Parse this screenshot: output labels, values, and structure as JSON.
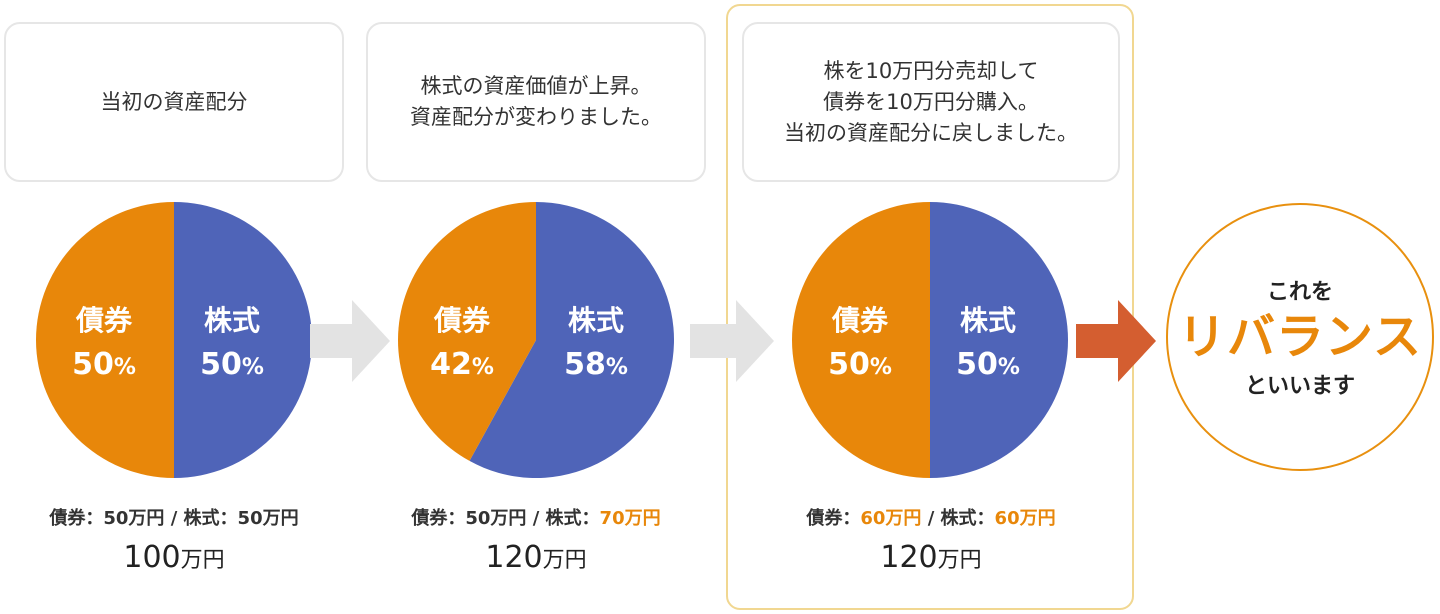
{
  "colors": {
    "bond": "#e8870a",
    "stock": "#4f64b8",
    "highlight": "#e8870a",
    "conclusion_border": "#e8900f",
    "arrow_gray": "#e3e3e3",
    "arrow_orange": "#d45e30"
  },
  "steps": [
    {
      "caption": [
        "当初の資産配分"
      ],
      "bond_label": "債券",
      "stock_label": "株式",
      "bond_pct": "50",
      "stock_pct": "50",
      "pct_unit": "%",
      "bond_share": 0.5,
      "breakdown": {
        "bond_name": "債券：",
        "bond_value": "50万円",
        "sep": " / ",
        "stock_name": "株式：",
        "stock_value": "50万円"
      },
      "total": {
        "number": "100",
        "unit": "万円"
      }
    },
    {
      "caption": [
        "株式の資産価値が上昇。",
        "資産配分が変わりました。"
      ],
      "bond_label": "債券",
      "stock_label": "株式",
      "bond_pct": "42",
      "stock_pct": "58",
      "pct_unit": "%",
      "bond_share": 0.42,
      "breakdown": {
        "bond_name": "債券：",
        "bond_value": "50万円",
        "sep": " / ",
        "stock_name": "株式：",
        "stock_value": "70万円"
      },
      "total": {
        "number": "120",
        "unit": "万円"
      }
    },
    {
      "caption": [
        "株を10万円分売却して",
        "債券を10万円分購入。",
        "当初の資産配分に戻しました。"
      ],
      "bond_label": "債券",
      "stock_label": "株式",
      "bond_pct": "50",
      "stock_pct": "50",
      "pct_unit": "%",
      "bond_share": 0.5,
      "breakdown": {
        "bond_name": "債券：",
        "bond_value": "60万円",
        "sep": " / ",
        "stock_name": "株式：",
        "stock_value": "60万円"
      },
      "total": {
        "number": "120",
        "unit": "万円"
      }
    }
  ],
  "conclusion": {
    "top": "これを",
    "main": "リバランス",
    "bottom": "といいます"
  }
}
